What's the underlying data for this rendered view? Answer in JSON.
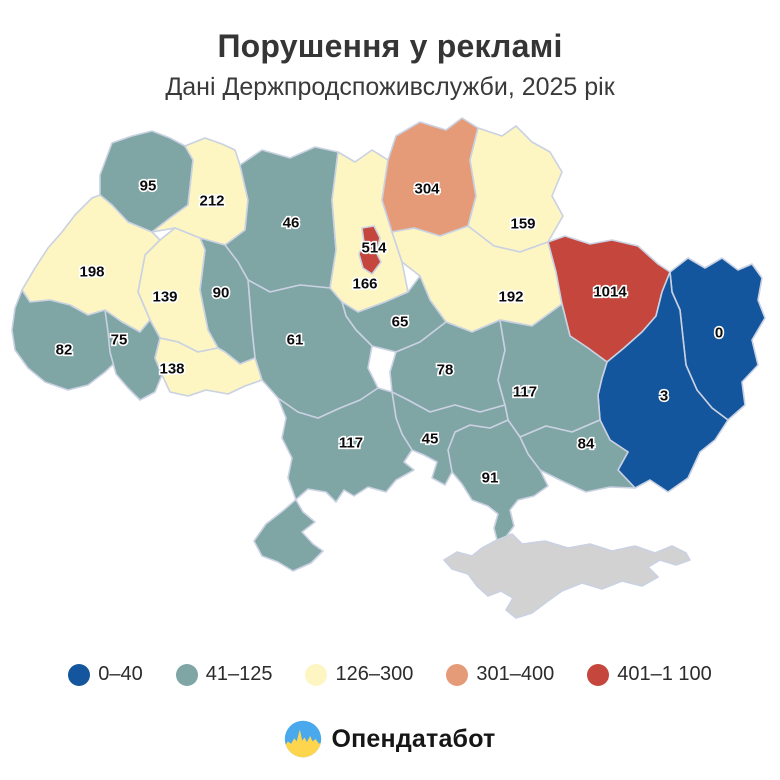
{
  "title": "Порушення у рекламі",
  "subtitle": "Дані Держпродспоживслужби, 2025 рік",
  "footer": {
    "brand": "Опендатабот"
  },
  "palette": {
    "blue": "#14569d",
    "teal": "#7fa5a4",
    "yellow": "#fdf6c2",
    "orange": "#e69b78",
    "red": "#c5463d",
    "nodata": "#d2d2d2",
    "border": "#c9d1e2",
    "label": "#0b0b0b",
    "logo_blue": "#4aa8ed",
    "logo_yellow": "#ffd54d"
  },
  "legend": [
    {
      "label": "0–40",
      "bucket": "blue"
    },
    {
      "label": "41–125",
      "bucket": "teal"
    },
    {
      "label": "126–300",
      "bucket": "yellow"
    },
    {
      "label": "301–400",
      "bucket": "orange"
    },
    {
      "label": "401–1 100",
      "bucket": "red"
    }
  ],
  "chart_data": {
    "type": "heatmap",
    "subtype": "choropleth-map-ukraine",
    "title": "Порушення у рекламі",
    "subtitle": "Дані Держпродспоживслужби, 2025 рік",
    "legend_position": "bottom",
    "value_meaning": "advertising violations per region, 2025",
    "buckets": [
      {
        "range": "0–40",
        "color": "#14569d"
      },
      {
        "range": "41–125",
        "color": "#7fa5a4"
      },
      {
        "range": "126–300",
        "color": "#fdf6c2"
      },
      {
        "range": "301–400",
        "color": "#e69b78"
      },
      {
        "range": "401–1 100",
        "color": "#c5463d"
      }
    ],
    "regions": [
      {
        "id": "volyn",
        "value": 95,
        "bucket": "teal"
      },
      {
        "id": "rivne",
        "value": 212,
        "bucket": "yellow"
      },
      {
        "id": "zhytomyr",
        "value": 46,
        "bucket": "teal"
      },
      {
        "id": "kyiv_oblast",
        "value": 166,
        "bucket": "yellow"
      },
      {
        "id": "kyiv_city",
        "value": 514,
        "bucket": "red"
      },
      {
        "id": "chernihiv",
        "value": 304,
        "bucket": "orange"
      },
      {
        "id": "sumy",
        "value": 159,
        "bucket": "yellow"
      },
      {
        "id": "poltava",
        "value": 192,
        "bucket": "yellow"
      },
      {
        "id": "kharkiv",
        "value": 1014,
        "bucket": "red"
      },
      {
        "id": "luhansk",
        "value": 0,
        "bucket": "blue"
      },
      {
        "id": "donetsk",
        "value": 3,
        "bucket": "blue"
      },
      {
        "id": "cherkasy",
        "value": 65,
        "bucket": "teal"
      },
      {
        "id": "kirovohrad",
        "value": 78,
        "bucket": "teal"
      },
      {
        "id": "dnipropetrovsk",
        "value": 117,
        "bucket": "teal"
      },
      {
        "id": "zaporizhzhia",
        "value": 84,
        "bucket": "teal"
      },
      {
        "id": "kherson",
        "value": 91,
        "bucket": "teal"
      },
      {
        "id": "mykolaiv",
        "value": 45,
        "bucket": "teal"
      },
      {
        "id": "odesa",
        "value": 117,
        "bucket": "teal"
      },
      {
        "id": "vinnytsia",
        "value": 61,
        "bucket": "teal"
      },
      {
        "id": "khmelnytskyi",
        "value": 90,
        "bucket": "teal"
      },
      {
        "id": "ternopil",
        "value": 139,
        "bucket": "yellow"
      },
      {
        "id": "lviv",
        "value": 198,
        "bucket": "yellow"
      },
      {
        "id": "zakarpattia",
        "value": 82,
        "bucket": "teal"
      },
      {
        "id": "ivano_frankivsk",
        "value": 75,
        "bucket": "teal"
      },
      {
        "id": "chernivtsi",
        "value": 138,
        "bucket": "yellow"
      },
      {
        "id": "crimea",
        "value": null,
        "bucket": "nodata"
      }
    ]
  }
}
